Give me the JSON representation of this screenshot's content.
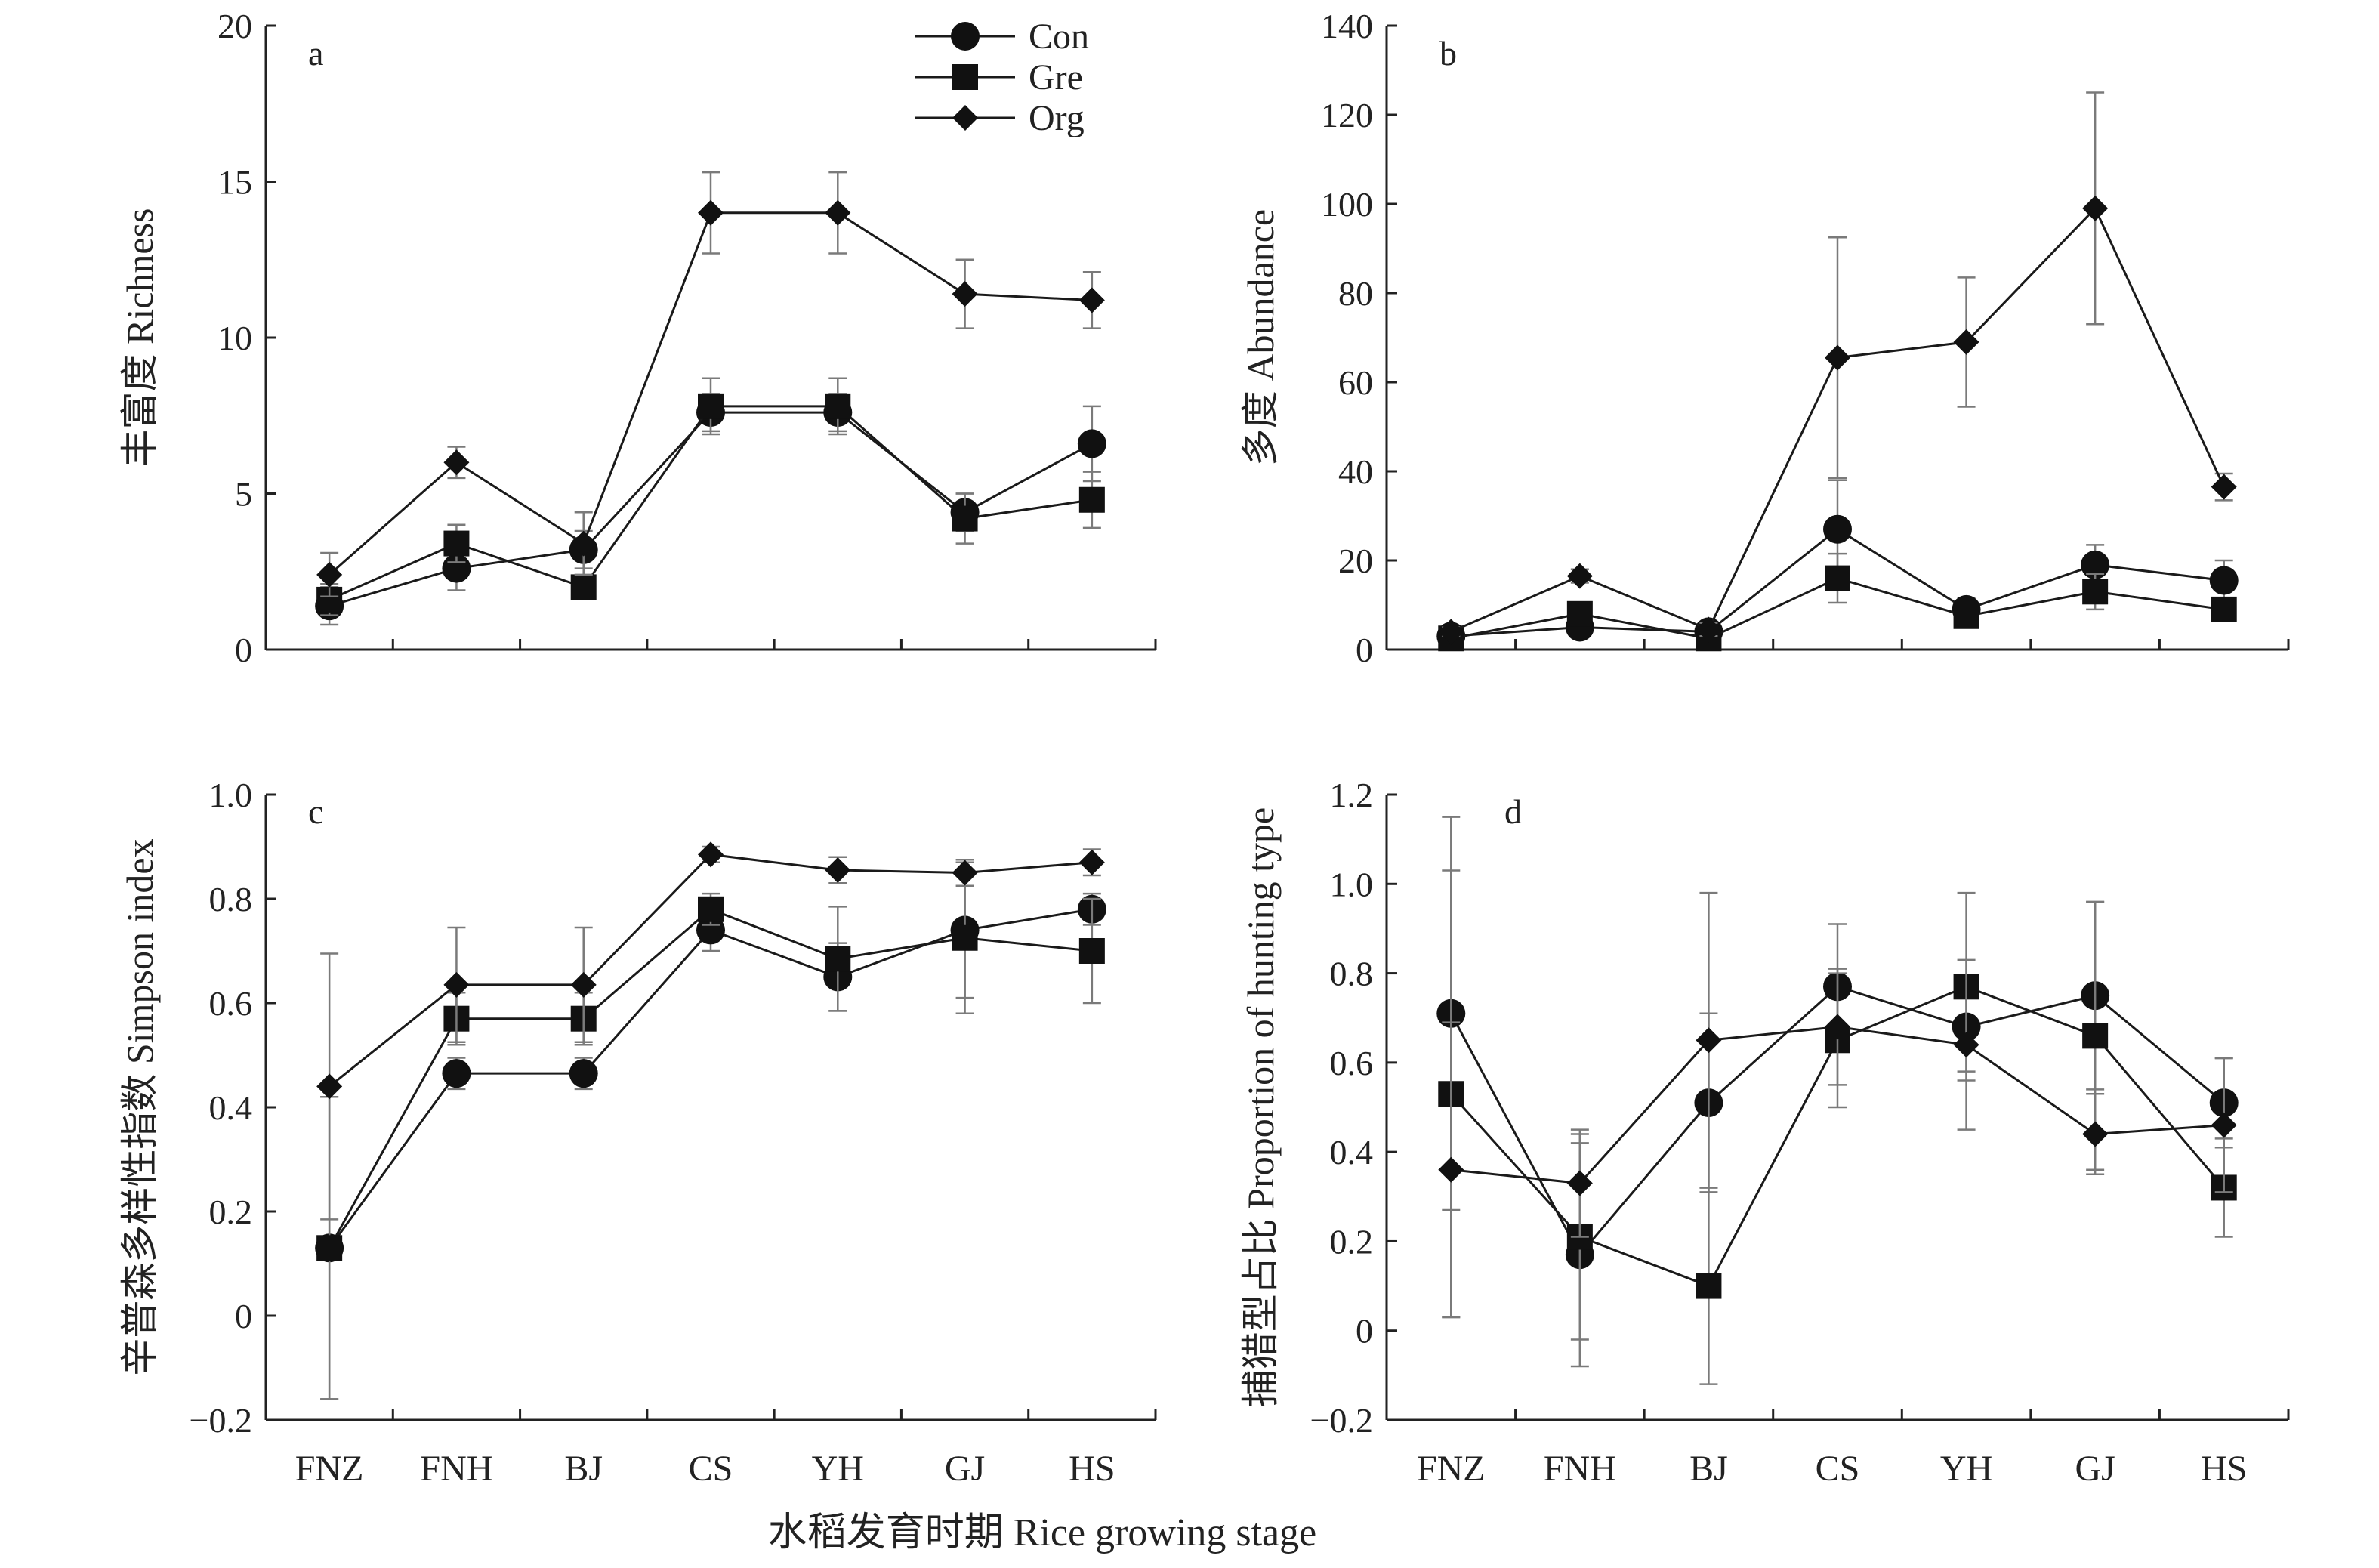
{
  "figure": {
    "xlabel": "水稻发育时期 Rice growing stage"
  },
  "legend": [
    "Con",
    "Gre",
    "Org"
  ],
  "chart_data": [
    {
      "panel": "a",
      "type": "line",
      "ylabel": "丰富度 Richness",
      "categories": [
        "FNZ",
        "FNH",
        "BJ",
        "CS",
        "YH",
        "GJ",
        "HS"
      ],
      "ylim": [
        0,
        20
      ],
      "yticks": [
        0,
        5,
        10,
        15,
        20
      ],
      "show_category_labels": false,
      "series": [
        {
          "name": "Con",
          "marker": "circle",
          "values": [
            1.4,
            2.6,
            3.2,
            7.6,
            7.6,
            4.4,
            6.6
          ],
          "err": [
            0.6,
            0.7,
            0.6,
            0.6,
            0.6,
            0.6,
            1.2
          ]
        },
        {
          "name": "Gre",
          "marker": "square",
          "values": [
            1.6,
            3.4,
            2.0,
            7.8,
            7.8,
            4.2,
            4.8
          ],
          "err": [
            0.5,
            0.6,
            0.3,
            0.9,
            0.9,
            0.8,
            0.9
          ]
        },
        {
          "name": "Org",
          "marker": "diamond",
          "values": [
            2.4,
            6.0,
            3.4,
            14.0,
            14.0,
            11.4,
            11.2
          ],
          "err": [
            0.7,
            0.5,
            1.0,
            1.3,
            1.3,
            1.1,
            0.9
          ]
        }
      ]
    },
    {
      "panel": "b",
      "type": "line",
      "ylabel": "多度 Abundance",
      "categories": [
        "FNZ",
        "FNH",
        "BJ",
        "CS",
        "YH",
        "GJ",
        "HS"
      ],
      "ylim": [
        0,
        140
      ],
      "yticks": [
        0,
        20,
        40,
        60,
        80,
        100,
        120,
        140
      ],
      "show_category_labels": false,
      "series": [
        {
          "name": "Con",
          "marker": "circle",
          "values": [
            3,
            5,
            4,
            27,
            9,
            19,
            15.5
          ],
          "err": [
            1,
            1.5,
            1,
            11,
            2.5,
            4.5,
            4.5
          ]
        },
        {
          "name": "Gre",
          "marker": "square",
          "values": [
            2.5,
            8,
            2.5,
            16,
            7.5,
            13,
            9
          ],
          "err": [
            0.5,
            2,
            0.5,
            5.5,
            2,
            4,
            2
          ]
        },
        {
          "name": "Org",
          "marker": "diamond",
          "values": [
            4,
            16.5,
            4.5,
            65.5,
            69,
            99,
            36.5
          ],
          "err": [
            1,
            1.5,
            1.5,
            27,
            14.5,
            26,
            3
          ]
        }
      ]
    },
    {
      "panel": "c",
      "type": "line",
      "ylabel": "辛普森多样性指数 Simpson index",
      "categories": [
        "FNZ",
        "FNH",
        "BJ",
        "CS",
        "YH",
        "GJ",
        "HS"
      ],
      "ylim": [
        -0.2,
        1.0
      ],
      "yticks": [
        -0.2,
        0,
        0.2,
        0.4,
        0.6,
        0.8,
        1.0
      ],
      "ytick_labels": [
        "−0.2",
        "0",
        "0.2",
        "0.4",
        "0.6",
        "0.8",
        "1.0"
      ],
      "show_category_labels": true,
      "series": [
        {
          "name": "Con",
          "marker": "circle",
          "values": [
            0.13,
            0.465,
            0.465,
            0.74,
            0.65,
            0.74,
            0.78
          ],
          "err": [
            0.29,
            0.03,
            0.03,
            0.04,
            0.065,
            0.13,
            0.03
          ]
        },
        {
          "name": "Gre",
          "marker": "square",
          "values": [
            0.13,
            0.57,
            0.57,
            0.78,
            0.685,
            0.725,
            0.7
          ],
          "err": [
            0.29,
            0.05,
            0.05,
            0.03,
            0.1,
            0.145,
            0.1
          ]
        },
        {
          "name": "Org",
          "marker": "diamond",
          "values": [
            0.44,
            0.635,
            0.635,
            0.885,
            0.855,
            0.85,
            0.87
          ],
          "err": [
            0.255,
            0.11,
            0.11,
            0.015,
            0.025,
            0.025,
            0.025
          ]
        }
      ]
    },
    {
      "panel": "d",
      "type": "line",
      "ylabel": "捕猎型占比 Proportion of hunting type",
      "categories": [
        "FNZ",
        "FNH",
        "BJ",
        "CS",
        "YH",
        "GJ",
        "HS"
      ],
      "ylim": [
        -0.2,
        1.2
      ],
      "yticks": [
        -0.2,
        0,
        0.2,
        0.4,
        0.6,
        0.8,
        1.0,
        1.2
      ],
      "ytick_labels": [
        "−0.2",
        "0",
        "0.2",
        "0.4",
        "0.6",
        "0.8",
        "1.0",
        "1.2"
      ],
      "show_category_labels": true,
      "series": [
        {
          "name": "Con",
          "marker": "circle",
          "values": [
            0.71,
            0.17,
            0.51,
            0.77,
            0.68,
            0.75,
            0.51
          ],
          "err": [
            0.44,
            0.25,
            0.2,
            0.14,
            0.1,
            0.21,
            0.1
          ]
        },
        {
          "name": "Gre",
          "marker": "square",
          "values": [
            0.53,
            0.21,
            0.1,
            0.65,
            0.77,
            0.66,
            0.32
          ],
          "err": [
            0.5,
            0.23,
            0.22,
            0.15,
            0.21,
            0.3,
            0.11
          ]
        },
        {
          "name": "Org",
          "marker": "diamond",
          "values": [
            0.36,
            0.33,
            0.65,
            0.68,
            0.64,
            0.44,
            0.46
          ],
          "err": [
            0.33,
            0.12,
            0.33,
            0.13,
            0.19,
            0.09,
            0.15
          ]
        }
      ]
    }
  ]
}
